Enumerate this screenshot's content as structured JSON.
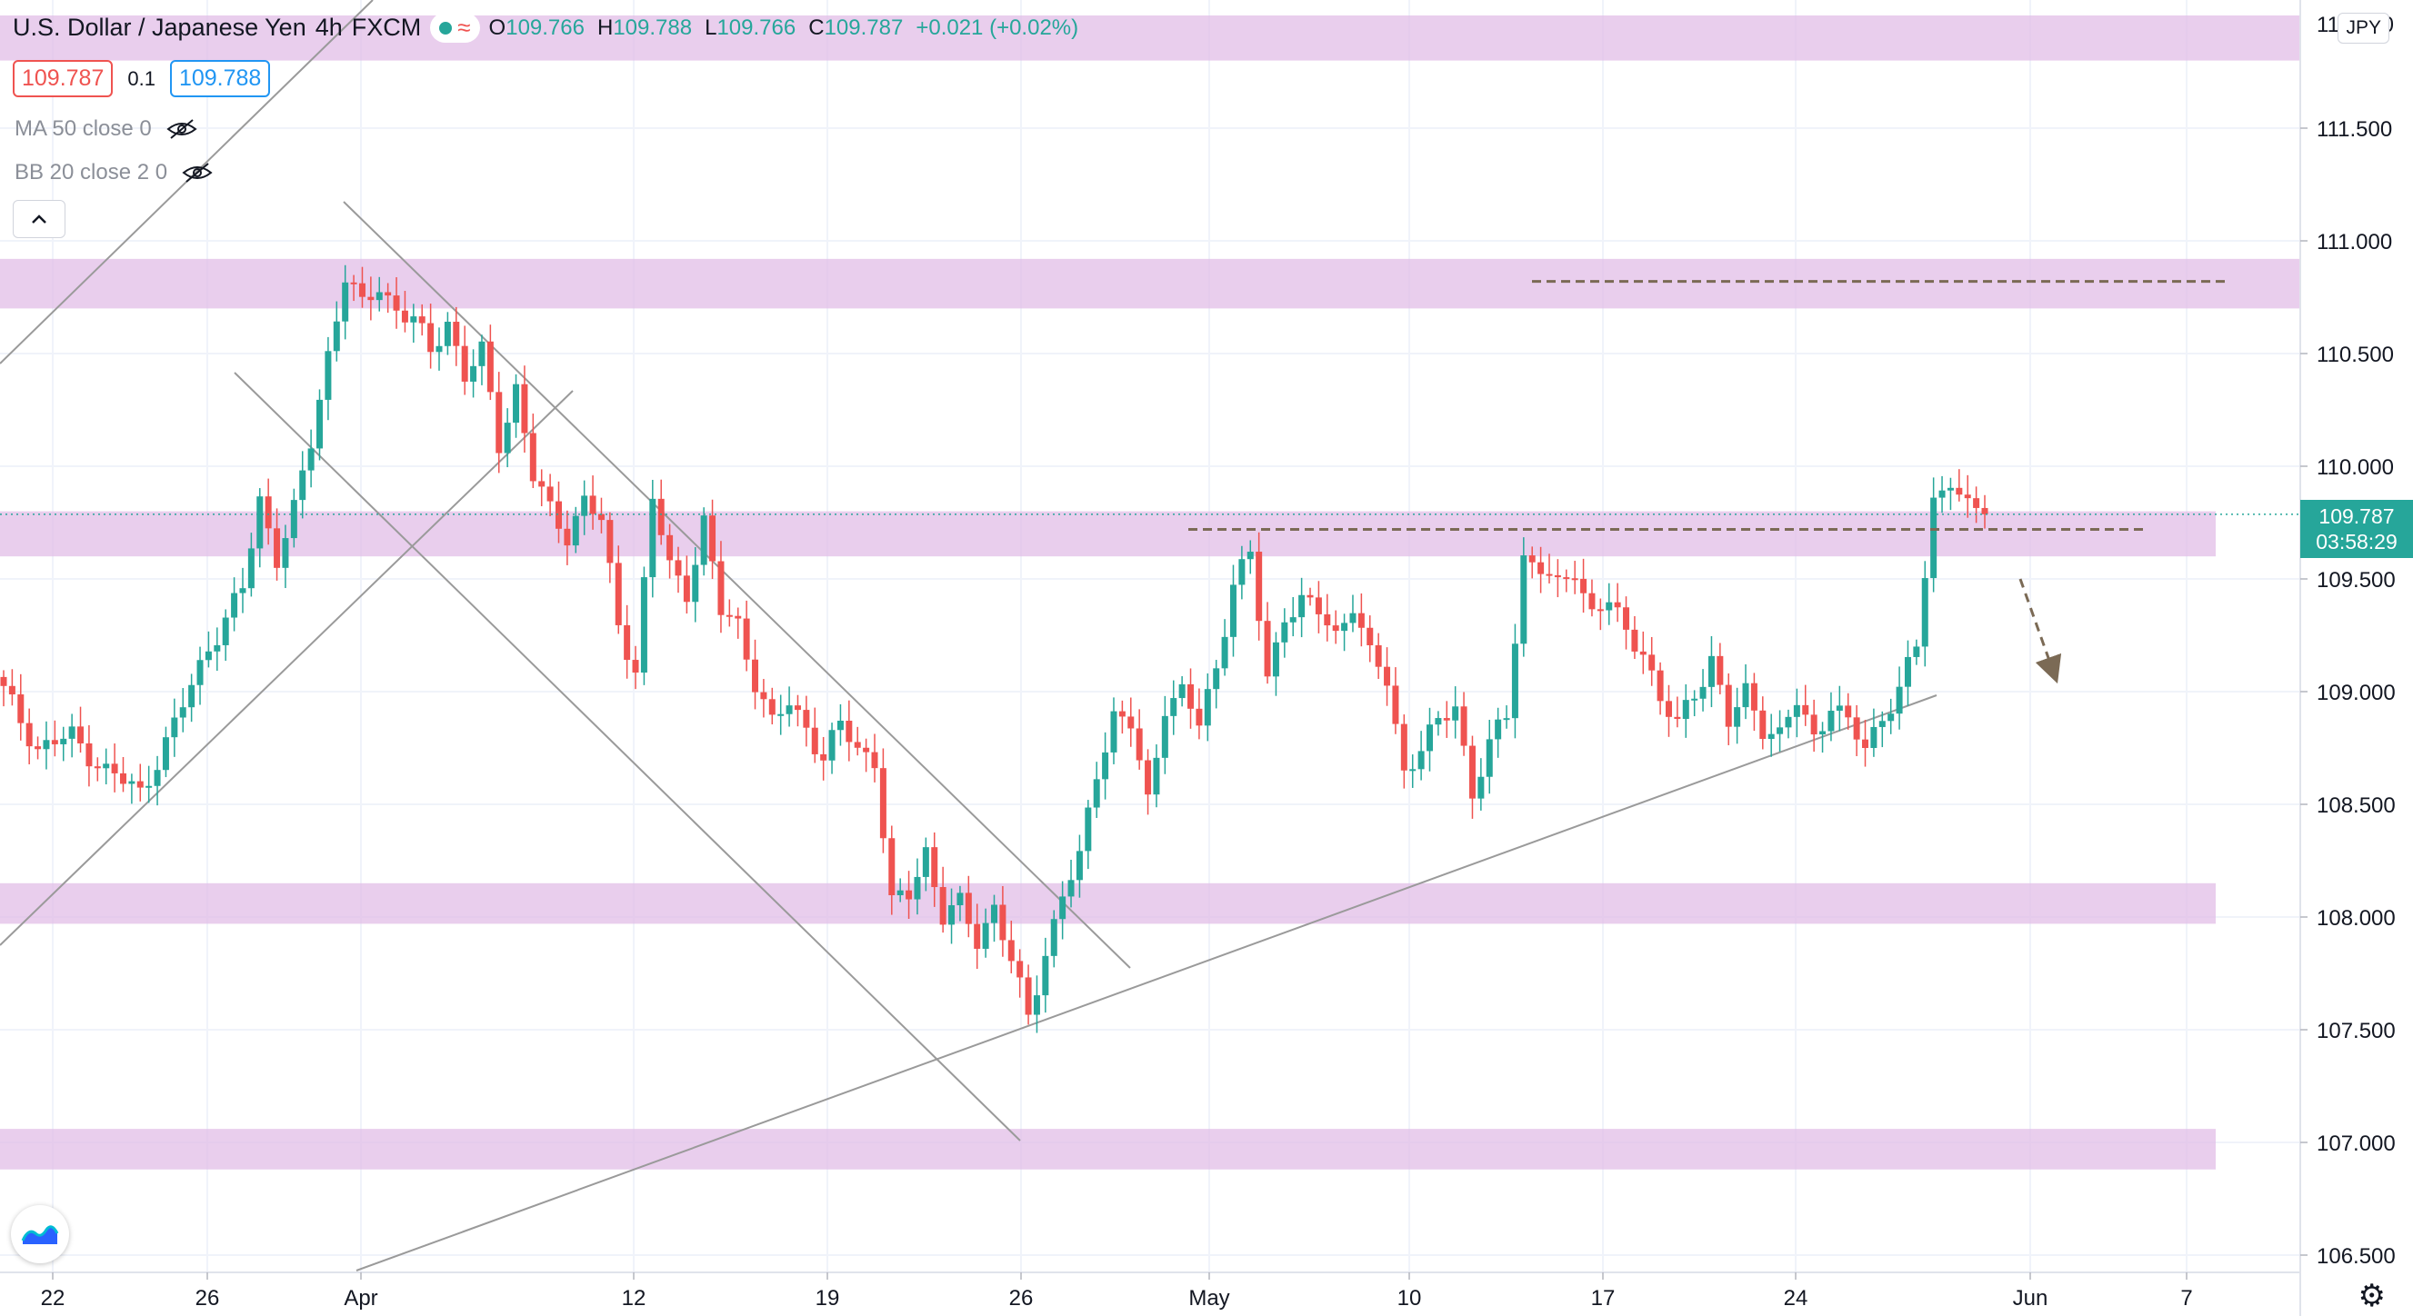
{
  "header": {
    "symbol": "U.S. Dollar / Japanese Yen",
    "interval": "4h",
    "source": "FXCM",
    "ohlc": {
      "o_label": "O",
      "o": "109.766",
      "h_label": "H",
      "h": "109.788",
      "l_label": "L",
      "l": "109.766",
      "c_label": "C",
      "c": "109.787",
      "change": "+0.021 (+0.02%)"
    },
    "sell_price": "109.787",
    "spread": "0.1",
    "buy_price": "109.788"
  },
  "indicators": [
    {
      "label": "MA 50 close 0"
    },
    {
      "label": "BB 20 close 2 0"
    }
  ],
  "price_axis": {
    "currency": "JPY",
    "current_price": "109.787",
    "countdown": "03:58:29",
    "top_partial": "112.000"
  },
  "colors": {
    "up": "#26a69a",
    "down": "#ef5350",
    "zone": "#e1bee7",
    "trendline": "#9a9a9a",
    "dashed": "#7b6a55"
  },
  "chart_data": {
    "type": "candlestick",
    "instrument": "USDJPY",
    "timeframe": "4h",
    "y_range": [
      106.43,
      112.05
    ],
    "y_ticks": [
      "111.500",
      "111.000",
      "110.500",
      "110.000",
      "109.500",
      "109.000",
      "108.500",
      "108.000",
      "107.500",
      "107.000",
      "106.500"
    ],
    "x_ticks": [
      "22",
      "26",
      "Apr",
      "12",
      "19",
      "26",
      "May",
      "10",
      "17",
      "24",
      "Jun",
      "7"
    ],
    "close_path": [
      [
        0,
        109.0
      ],
      [
        4,
        108.75
      ],
      [
        8,
        108.8
      ],
      [
        12,
        108.65
      ],
      [
        16,
        108.55
      ],
      [
        20,
        108.85
      ],
      [
        24,
        109.2
      ],
      [
        28,
        109.45
      ],
      [
        30,
        109.85
      ],
      [
        32,
        109.6
      ],
      [
        34,
        109.8
      ],
      [
        36,
        110.1
      ],
      [
        38,
        110.5
      ],
      [
        40,
        110.85
      ],
      [
        42,
        110.7
      ],
      [
        44,
        110.8
      ],
      [
        46,
        110.7
      ],
      [
        48,
        110.65
      ],
      [
        50,
        110.5
      ],
      [
        52,
        110.65
      ],
      [
        54,
        110.4
      ],
      [
        56,
        110.5
      ],
      [
        58,
        110.1
      ],
      [
        60,
        110.35
      ],
      [
        62,
        109.95
      ],
      [
        64,
        109.8
      ],
      [
        66,
        109.7
      ],
      [
        68,
        109.85
      ],
      [
        70,
        109.75
      ],
      [
        72,
        109.3
      ],
      [
        74,
        109.1
      ],
      [
        76,
        109.85
      ],
      [
        78,
        109.55
      ],
      [
        80,
        109.45
      ],
      [
        82,
        109.75
      ],
      [
        84,
        109.35
      ],
      [
        86,
        109.3
      ],
      [
        88,
        109.05
      ],
      [
        90,
        108.85
      ],
      [
        92,
        108.95
      ],
      [
        94,
        108.85
      ],
      [
        96,
        108.7
      ],
      [
        98,
        108.85
      ],
      [
        100,
        108.75
      ],
      [
        102,
        108.7
      ],
      [
        104,
        108.05
      ],
      [
        106,
        108.1
      ],
      [
        108,
        108.3
      ],
      [
        110,
        108.0
      ],
      [
        112,
        108.05
      ],
      [
        114,
        107.9
      ],
      [
        116,
        108.05
      ],
      [
        118,
        107.8
      ],
      [
        120,
        107.55
      ],
      [
        122,
        107.85
      ],
      [
        124,
        108.1
      ],
      [
        126,
        108.25
      ],
      [
        128,
        108.65
      ],
      [
        130,
        108.9
      ],
      [
        132,
        108.85
      ],
      [
        134,
        108.5
      ],
      [
        136,
        108.95
      ],
      [
        138,
        109.0
      ],
      [
        140,
        108.85
      ],
      [
        142,
        109.1
      ],
      [
        144,
        109.5
      ],
      [
        146,
        109.6
      ],
      [
        148,
        109.05
      ],
      [
        150,
        109.35
      ],
      [
        152,
        109.4
      ],
      [
        154,
        109.35
      ],
      [
        156,
        109.25
      ],
      [
        158,
        109.4
      ],
      [
        160,
        109.15
      ],
      [
        162,
        109.05
      ],
      [
        164,
        108.65
      ],
      [
        166,
        108.75
      ],
      [
        168,
        108.85
      ],
      [
        170,
        108.95
      ],
      [
        172,
        108.55
      ],
      [
        174,
        108.75
      ],
      [
        176,
        108.9
      ],
      [
        178,
        109.6
      ],
      [
        180,
        109.55
      ],
      [
        182,
        109.45
      ],
      [
        184,
        109.55
      ],
      [
        186,
        109.35
      ],
      [
        188,
        109.4
      ],
      [
        190,
        109.25
      ],
      [
        192,
        109.2
      ],
      [
        194,
        108.95
      ],
      [
        196,
        108.85
      ],
      [
        198,
        109.0
      ],
      [
        200,
        109.15
      ],
      [
        202,
        108.85
      ],
      [
        204,
        109.0
      ],
      [
        206,
        108.85
      ],
      [
        208,
        108.8
      ],
      [
        210,
        108.95
      ],
      [
        212,
        108.8
      ],
      [
        214,
        108.95
      ],
      [
        216,
        108.85
      ],
      [
        218,
        108.75
      ],
      [
        220,
        108.9
      ],
      [
        222,
        109.0
      ],
      [
        224,
        109.2
      ],
      [
        226,
        109.85
      ],
      [
        228,
        109.95
      ],
      [
        230,
        109.8
      ],
      [
        232,
        109.787
      ]
    ],
    "zones": [
      [
        111.8,
        112.0
      ],
      [
        110.7,
        110.92
      ],
      [
        109.6,
        109.8
      ],
      [
        107.97,
        108.15
      ],
      [
        106.88,
        107.06
      ]
    ],
    "dashed_levels": [
      110.82,
      109.72
    ],
    "annotation": "dashed arrow pointing down"
  }
}
